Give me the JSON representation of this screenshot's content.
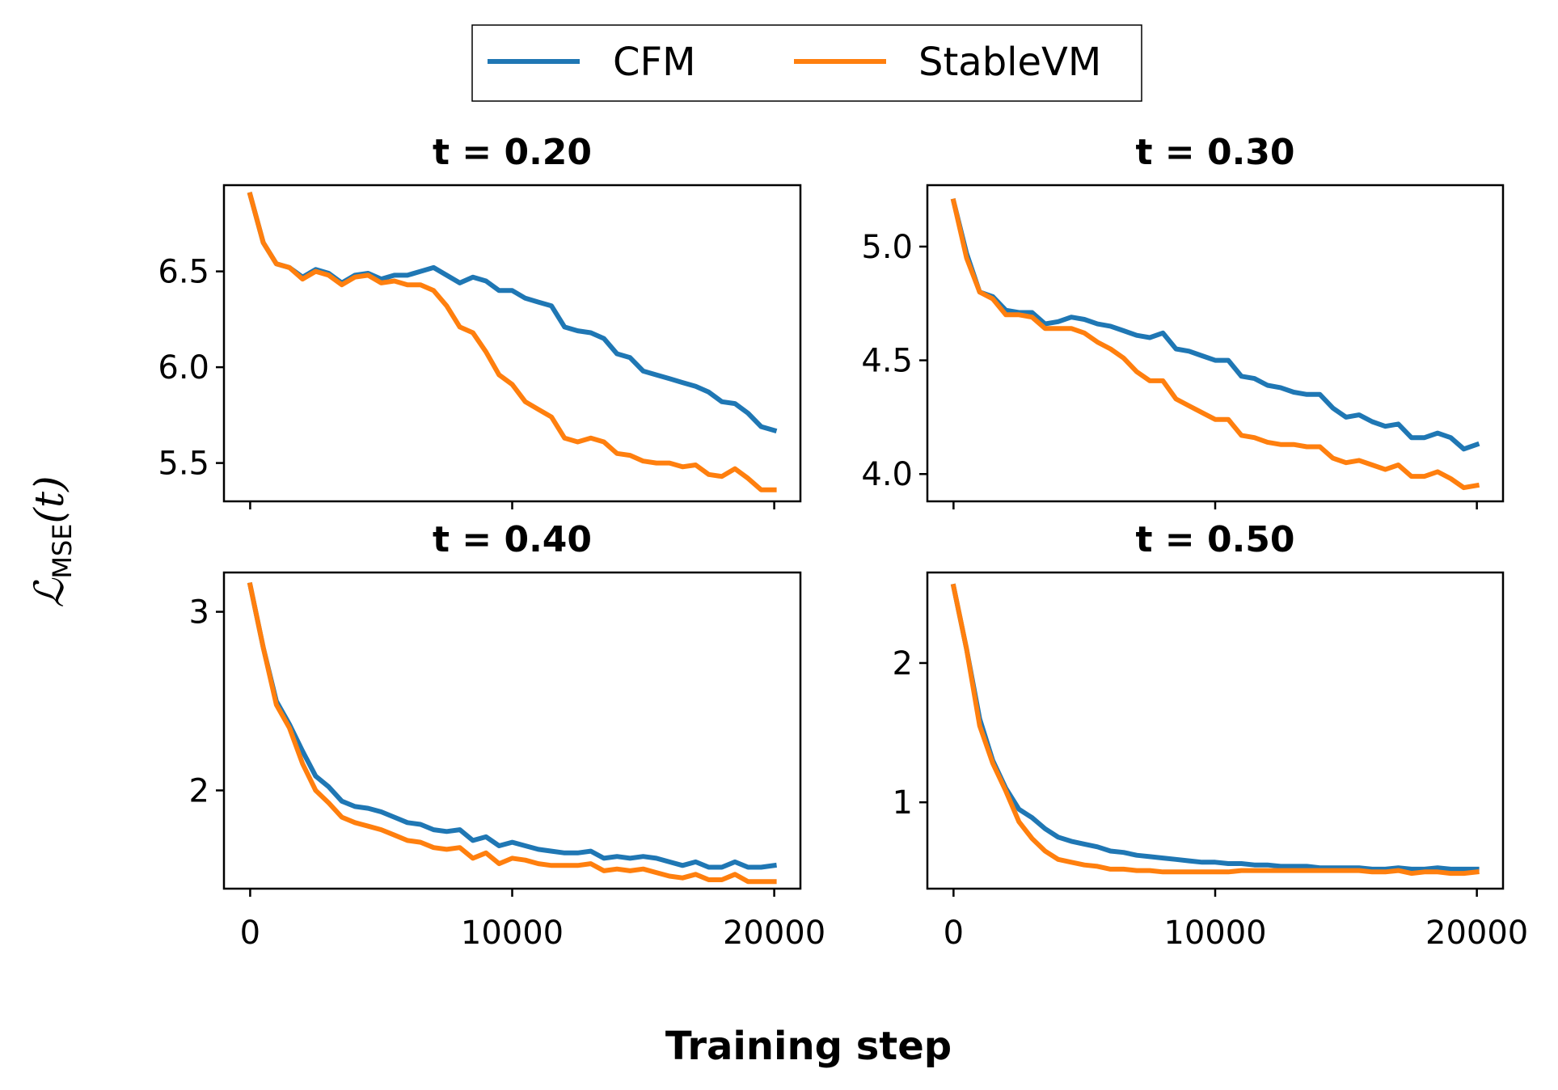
{
  "figure": {
    "xlabel": "Training step",
    "ylabel_main": "ℒ",
    "ylabel_sub": "MSE",
    "ylabel_arg": "(t)"
  },
  "legend": {
    "placement": "top-center",
    "items": [
      {
        "label": "CFM",
        "color": "#1f77b4"
      },
      {
        "label": "StableVM",
        "color": "#ff7f0e"
      }
    ]
  },
  "chart_data": [
    {
      "type": "line",
      "title": "t = 0.20",
      "xlim": [
        -1000,
        21000
      ],
      "ylim": [
        5.3,
        6.95
      ],
      "xticks": [
        0,
        10000,
        20000
      ],
      "xtick_labels": [
        "",
        "",
        ""
      ],
      "yticks": [
        5.5,
        6.0,
        6.5
      ],
      "ytick_labels": [
        "5.5",
        "6.0",
        "6.5"
      ],
      "x": [
        0,
        500,
        1000,
        1500,
        2000,
        2500,
        3000,
        3500,
        4000,
        4500,
        5000,
        5500,
        6000,
        6500,
        7000,
        7500,
        8000,
        8500,
        9000,
        9500,
        10000,
        10500,
        11000,
        11500,
        12000,
        12500,
        13000,
        13500,
        14000,
        14500,
        15000,
        15500,
        16000,
        16500,
        17000,
        17500,
        18000,
        18500,
        19000,
        19500,
        20000
      ],
      "series": [
        {
          "name": "CFM",
          "color": "#1f77b4",
          "values": [
            6.9,
            6.65,
            6.54,
            6.52,
            6.47,
            6.51,
            6.49,
            6.44,
            6.48,
            6.49,
            6.46,
            6.48,
            6.48,
            6.5,
            6.52,
            6.48,
            6.44,
            6.47,
            6.45,
            6.4,
            6.4,
            6.36,
            6.34,
            6.32,
            6.21,
            6.19,
            6.18,
            6.15,
            6.07,
            6.05,
            5.98,
            5.96,
            5.94,
            5.92,
            5.9,
            5.87,
            5.82,
            5.81,
            5.76,
            5.69,
            5.67
          ]
        },
        {
          "name": "StableVM",
          "color": "#ff7f0e",
          "values": [
            6.9,
            6.65,
            6.54,
            6.52,
            6.46,
            6.5,
            6.48,
            6.43,
            6.47,
            6.48,
            6.44,
            6.45,
            6.43,
            6.43,
            6.4,
            6.32,
            6.21,
            6.18,
            6.08,
            5.96,
            5.91,
            5.82,
            5.78,
            5.74,
            5.63,
            5.61,
            5.63,
            5.61,
            5.55,
            5.54,
            5.51,
            5.5,
            5.5,
            5.48,
            5.49,
            5.44,
            5.43,
            5.47,
            5.42,
            5.36,
            5.36
          ]
        }
      ]
    },
    {
      "type": "line",
      "title": "t = 0.30",
      "xlim": [
        -1000,
        21000
      ],
      "ylim": [
        3.88,
        5.27
      ],
      "xticks": [
        0,
        10000,
        20000
      ],
      "xtick_labels": [
        "",
        "",
        ""
      ],
      "yticks": [
        4.0,
        4.5,
        5.0
      ],
      "ytick_labels": [
        "4.0",
        "4.5",
        "5.0"
      ],
      "x": [
        0,
        500,
        1000,
        1500,
        2000,
        2500,
        3000,
        3500,
        4000,
        4500,
        5000,
        5500,
        6000,
        6500,
        7000,
        7500,
        8000,
        8500,
        9000,
        9500,
        10000,
        10500,
        11000,
        11500,
        12000,
        12500,
        13000,
        13500,
        14000,
        14500,
        15000,
        15500,
        16000,
        16500,
        17000,
        17500,
        18000,
        18500,
        19000,
        19500,
        20000
      ],
      "series": [
        {
          "name": "CFM",
          "color": "#1f77b4",
          "values": [
            5.2,
            4.97,
            4.8,
            4.78,
            4.72,
            4.71,
            4.71,
            4.66,
            4.67,
            4.69,
            4.68,
            4.66,
            4.65,
            4.63,
            4.61,
            4.6,
            4.62,
            4.55,
            4.54,
            4.52,
            4.5,
            4.5,
            4.43,
            4.42,
            4.39,
            4.38,
            4.36,
            4.35,
            4.35,
            4.29,
            4.25,
            4.26,
            4.23,
            4.21,
            4.22,
            4.16,
            4.16,
            4.18,
            4.16,
            4.11,
            4.13
          ]
        },
        {
          "name": "StableVM",
          "color": "#ff7f0e",
          "values": [
            5.2,
            4.95,
            4.8,
            4.77,
            4.7,
            4.7,
            4.69,
            4.64,
            4.64,
            4.64,
            4.62,
            4.58,
            4.55,
            4.51,
            4.45,
            4.41,
            4.41,
            4.33,
            4.3,
            4.27,
            4.24,
            4.24,
            4.17,
            4.16,
            4.14,
            4.13,
            4.13,
            4.12,
            4.12,
            4.07,
            4.05,
            4.06,
            4.04,
            4.02,
            4.04,
            3.99,
            3.99,
            4.01,
            3.98,
            3.94,
            3.95
          ]
        }
      ]
    },
    {
      "type": "line",
      "title": "t = 0.40",
      "xlim": [
        -1000,
        21000
      ],
      "ylim": [
        1.45,
        3.22
      ],
      "xticks": [
        0,
        10000,
        20000
      ],
      "xtick_labels": [
        "0",
        "10000",
        "20000"
      ],
      "yticks": [
        2,
        3
      ],
      "ytick_labels": [
        "2",
        "3"
      ],
      "x": [
        0,
        500,
        1000,
        1500,
        2000,
        2500,
        3000,
        3500,
        4000,
        4500,
        5000,
        5500,
        6000,
        6500,
        7000,
        7500,
        8000,
        8500,
        9000,
        9500,
        10000,
        10500,
        11000,
        11500,
        12000,
        12500,
        13000,
        13500,
        14000,
        14500,
        15000,
        15500,
        16000,
        16500,
        17000,
        17500,
        18000,
        18500,
        19000,
        19500,
        20000
      ],
      "series": [
        {
          "name": "CFM",
          "color": "#1f77b4",
          "values": [
            3.15,
            2.8,
            2.5,
            2.37,
            2.22,
            2.08,
            2.02,
            1.94,
            1.91,
            1.9,
            1.88,
            1.85,
            1.82,
            1.81,
            1.78,
            1.77,
            1.78,
            1.72,
            1.74,
            1.69,
            1.71,
            1.69,
            1.67,
            1.66,
            1.65,
            1.65,
            1.66,
            1.62,
            1.63,
            1.62,
            1.63,
            1.62,
            1.6,
            1.58,
            1.6,
            1.57,
            1.57,
            1.6,
            1.57,
            1.57,
            1.58
          ]
        },
        {
          "name": "StableVM",
          "color": "#ff7f0e",
          "values": [
            3.15,
            2.8,
            2.48,
            2.35,
            2.15,
            2.0,
            1.93,
            1.85,
            1.82,
            1.8,
            1.78,
            1.75,
            1.72,
            1.71,
            1.68,
            1.67,
            1.68,
            1.62,
            1.65,
            1.59,
            1.62,
            1.61,
            1.59,
            1.58,
            1.58,
            1.58,
            1.59,
            1.55,
            1.56,
            1.55,
            1.56,
            1.54,
            1.52,
            1.51,
            1.53,
            1.5,
            1.5,
            1.53,
            1.49,
            1.49,
            1.49
          ]
        }
      ]
    },
    {
      "type": "line",
      "title": "t = 0.50",
      "xlim": [
        -1000,
        21000
      ],
      "ylim": [
        0.38,
        2.65
      ],
      "xticks": [
        0,
        10000,
        20000
      ],
      "xtick_labels": [
        "0",
        "10000",
        "20000"
      ],
      "yticks": [
        1,
        2
      ],
      "ytick_labels": [
        "1",
        "2"
      ],
      "x": [
        0,
        500,
        1000,
        1500,
        2000,
        2500,
        3000,
        3500,
        4000,
        4500,
        5000,
        5500,
        6000,
        6500,
        7000,
        7500,
        8000,
        8500,
        9000,
        9500,
        10000,
        10500,
        11000,
        11500,
        12000,
        12500,
        13000,
        13500,
        14000,
        14500,
        15000,
        15500,
        16000,
        16500,
        17000,
        17500,
        18000,
        18500,
        19000,
        19500,
        20000
      ],
      "series": [
        {
          "name": "CFM",
          "color": "#1f77b4",
          "values": [
            2.55,
            2.1,
            1.6,
            1.3,
            1.1,
            0.95,
            0.89,
            0.81,
            0.75,
            0.72,
            0.7,
            0.68,
            0.65,
            0.64,
            0.62,
            0.61,
            0.6,
            0.59,
            0.58,
            0.57,
            0.57,
            0.56,
            0.56,
            0.55,
            0.55,
            0.54,
            0.54,
            0.54,
            0.53,
            0.53,
            0.53,
            0.53,
            0.52,
            0.52,
            0.53,
            0.52,
            0.52,
            0.53,
            0.52,
            0.52,
            0.52
          ]
        },
        {
          "name": "StableVM",
          "color": "#ff7f0e",
          "values": [
            2.55,
            2.1,
            1.55,
            1.28,
            1.08,
            0.86,
            0.74,
            0.65,
            0.59,
            0.57,
            0.55,
            0.54,
            0.52,
            0.52,
            0.51,
            0.51,
            0.5,
            0.5,
            0.5,
            0.5,
            0.5,
            0.5,
            0.51,
            0.51,
            0.51,
            0.51,
            0.51,
            0.51,
            0.51,
            0.51,
            0.51,
            0.51,
            0.5,
            0.5,
            0.51,
            0.49,
            0.5,
            0.5,
            0.49,
            0.49,
            0.5
          ]
        }
      ]
    }
  ]
}
